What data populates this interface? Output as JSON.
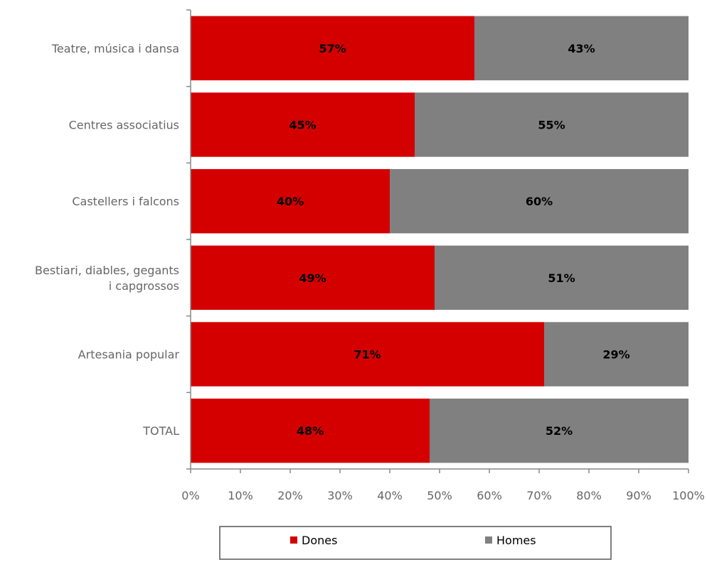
{
  "chart_data": {
    "type": "bar",
    "orientation": "horizontal",
    "stacked": "percent",
    "categories": [
      [
        "Teatre, música i dansa"
      ],
      [
        "Centres associatius"
      ],
      [
        "Castellers i falcons"
      ],
      [
        "Bestiari, diables, gegants",
        "i capgrossos"
      ],
      [
        "Artesania popular"
      ],
      [
        "TOTAL"
      ]
    ],
    "series": [
      {
        "name": "Dones",
        "color": "#d40000",
        "values": [
          57,
          45,
          40,
          49,
          71,
          48
        ],
        "labels": [
          "57%",
          "45%",
          "40%",
          "49%",
          "71%",
          "48%"
        ]
      },
      {
        "name": "Homes",
        "color": "#808080",
        "values": [
          43,
          55,
          60,
          51,
          29,
          52
        ],
        "labels": [
          "43%",
          "55%",
          "60%",
          "51%",
          "29%",
          "52%"
        ]
      }
    ],
    "xlim": [
      0,
      100
    ],
    "xticks": [
      "0%",
      "10%",
      "20%",
      "30%",
      "40%",
      "50%",
      "60%",
      "70%",
      "80%",
      "90%",
      "100%"
    ],
    "grid": false,
    "legend_position": "bottom"
  }
}
